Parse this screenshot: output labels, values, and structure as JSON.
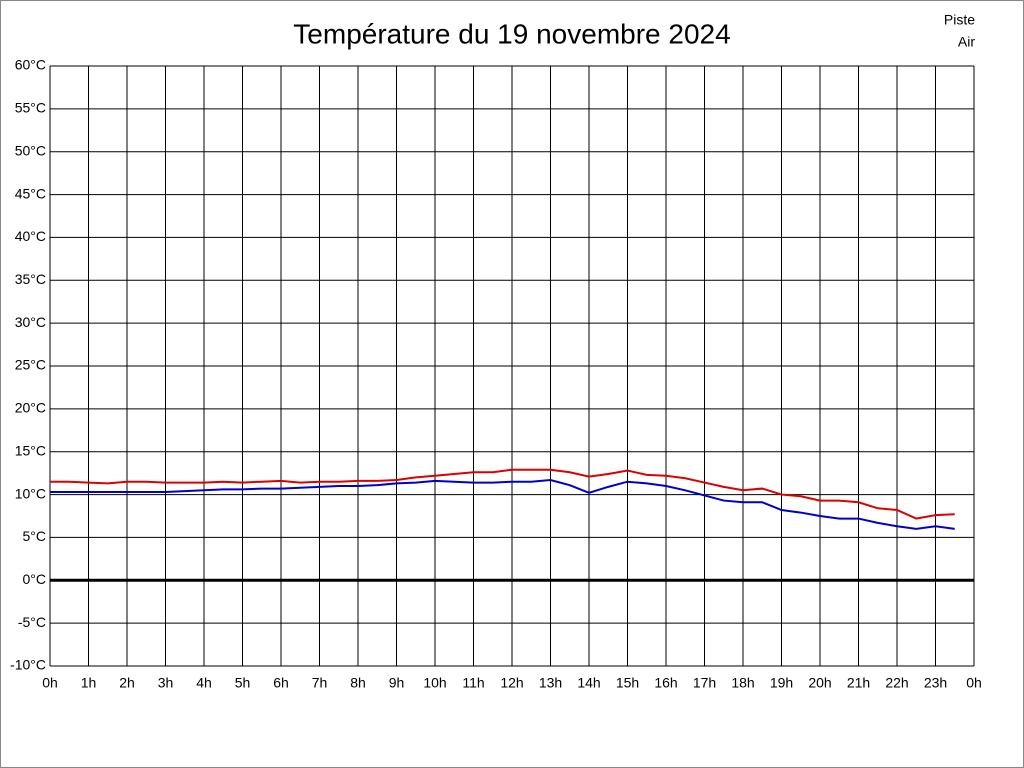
{
  "chart_data": {
    "type": "line",
    "title": "Température du 19 novembre 2024",
    "x": [
      0,
      0.5,
      1,
      1.5,
      2,
      2.5,
      3,
      3.5,
      4,
      4.5,
      5,
      5.5,
      6,
      6.5,
      7,
      7.5,
      8,
      8.5,
      9,
      9.5,
      10,
      10.5,
      11,
      11.5,
      12,
      12.5,
      13,
      13.5,
      14,
      14.5,
      15,
      15.5,
      16,
      16.5,
      17,
      17.5,
      18,
      18.5,
      19,
      19.5,
      20,
      20.5,
      21,
      21.5,
      22,
      22.5,
      23,
      23.5
    ],
    "series": [
      {
        "name": "Piste",
        "color": "#dd0000",
        "values": [
          11.5,
          11.5,
          11.4,
          11.3,
          11.5,
          11.5,
          11.4,
          11.4,
          11.4,
          11.5,
          11.4,
          11.5,
          11.6,
          11.4,
          11.5,
          11.5,
          11.6,
          11.6,
          11.7,
          12.0,
          12.2,
          12.4,
          12.6,
          12.6,
          12.9,
          12.9,
          12.9,
          12.6,
          12.1,
          12.4,
          12.8,
          12.3,
          12.2,
          11.9,
          11.4,
          10.9,
          10.5,
          10.7,
          10.0,
          9.8,
          9.3,
          9.3,
          9.1,
          8.4,
          8.2,
          7.2,
          7.6,
          7.7
        ]
      },
      {
        "name": "Air",
        "color": "#0000cc",
        "values": [
          10.3,
          10.3,
          10.3,
          10.3,
          10.3,
          10.3,
          10.3,
          10.4,
          10.5,
          10.6,
          10.6,
          10.7,
          10.7,
          10.8,
          10.9,
          11.0,
          11.0,
          11.1,
          11.3,
          11.4,
          11.6,
          11.5,
          11.4,
          11.4,
          11.5,
          11.5,
          11.7,
          11.1,
          10.2,
          10.9,
          11.5,
          11.3,
          11.0,
          10.5,
          9.9,
          9.3,
          9.1,
          9.1,
          8.2,
          7.9,
          7.5,
          7.2,
          7.2,
          6.7,
          6.3,
          6.0,
          6.3,
          6.0
        ]
      }
    ],
    "xlim": [
      0,
      24
    ],
    "xticks": [
      {
        "value": 0,
        "label": "0h"
      },
      {
        "value": 1,
        "label": "1h"
      },
      {
        "value": 2,
        "label": "2h"
      },
      {
        "value": 3,
        "label": "3h"
      },
      {
        "value": 4,
        "label": "4h"
      },
      {
        "value": 5,
        "label": "5h"
      },
      {
        "value": 6,
        "label": "6h"
      },
      {
        "value": 7,
        "label": "7h"
      },
      {
        "value": 8,
        "label": "8h"
      },
      {
        "value": 9,
        "label": "9h"
      },
      {
        "value": 10,
        "label": "10h"
      },
      {
        "value": 11,
        "label": "11h"
      },
      {
        "value": 12,
        "label": "12h"
      },
      {
        "value": 13,
        "label": "13h"
      },
      {
        "value": 14,
        "label": "14h"
      },
      {
        "value": 15,
        "label": "15h"
      },
      {
        "value": 16,
        "label": "16h"
      },
      {
        "value": 17,
        "label": "17h"
      },
      {
        "value": 18,
        "label": "18h"
      },
      {
        "value": 19,
        "label": "19h"
      },
      {
        "value": 20,
        "label": "20h"
      },
      {
        "value": 21,
        "label": "21h"
      },
      {
        "value": 22,
        "label": "22h"
      },
      {
        "value": 23,
        "label": "23h"
      },
      {
        "value": 24,
        "label": "0h"
      }
    ],
    "ylim": [
      -10,
      60
    ],
    "yticks": [
      {
        "value": -10,
        "label": "-10°C"
      },
      {
        "value": -5,
        "label": "-5°C"
      },
      {
        "value": 0,
        "label": "0°C"
      },
      {
        "value": 5,
        "label": "5°C"
      },
      {
        "value": 10,
        "label": "10°C"
      },
      {
        "value": 15,
        "label": "15°C"
      },
      {
        "value": 20,
        "label": "20°C"
      },
      {
        "value": 25,
        "label": "25°C"
      },
      {
        "value": 30,
        "label": "30°C"
      },
      {
        "value": 35,
        "label": "35°C"
      },
      {
        "value": 40,
        "label": "40°C"
      },
      {
        "value": 45,
        "label": "45°C"
      },
      {
        "value": 50,
        "label": "50°C"
      },
      {
        "value": 55,
        "label": "55°C"
      },
      {
        "value": 60,
        "label": "60°C"
      }
    ],
    "grid": true
  }
}
